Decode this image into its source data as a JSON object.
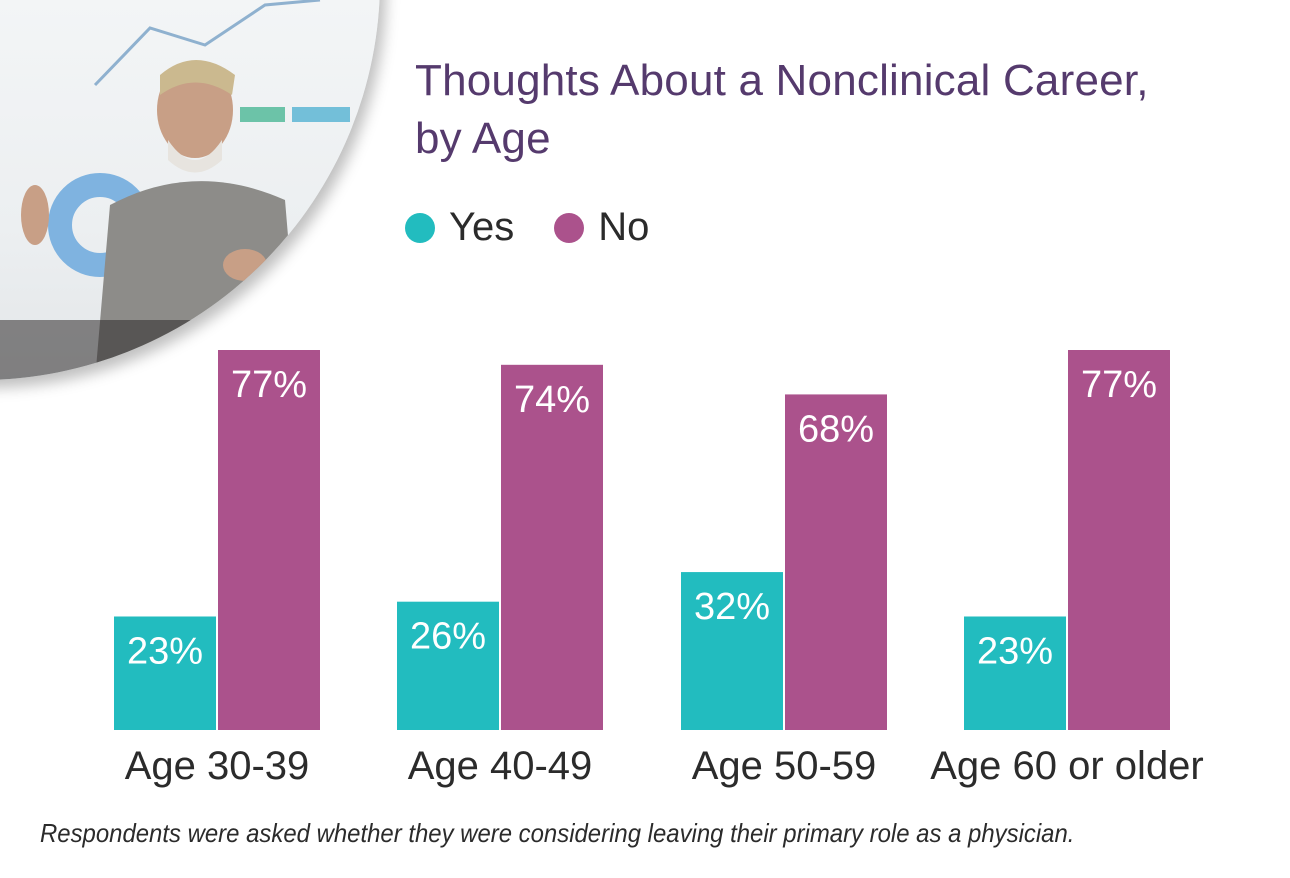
{
  "chart_data": {
    "type": "bar",
    "title": "Thoughts About a Nonclinical Career, by Age",
    "title_lines": [
      "Thoughts About a Nonclinical Career,",
      "by Age"
    ],
    "categories": [
      "Age 30-39",
      "Age 40-49",
      "Age 50-59",
      "Age 60 or older"
    ],
    "series": [
      {
        "name": "Yes",
        "color": "#22bcbf",
        "values": [
          23,
          26,
          32,
          23
        ],
        "labels": [
          "23%",
          "26%",
          "32%",
          "23%"
        ]
      },
      {
        "name": "No",
        "color": "#ab528c",
        "values": [
          77,
          74,
          68,
          77
        ],
        "labels": [
          "77%",
          "74%",
          "68%",
          "77%"
        ]
      }
    ],
    "xlabel": "",
    "ylabel": "",
    "ylim": [
      0,
      77
    ],
    "grid": false,
    "legend_position": "top",
    "footnote": "Respondents were asked whether they were considering leaving their primary role as a physician."
  },
  "colors": {
    "title": "#553a6d",
    "yes": "#22bcbf",
    "no": "#ab528c",
    "text": "#2b2b2b"
  },
  "photo": {
    "description": "presenter-photo"
  }
}
